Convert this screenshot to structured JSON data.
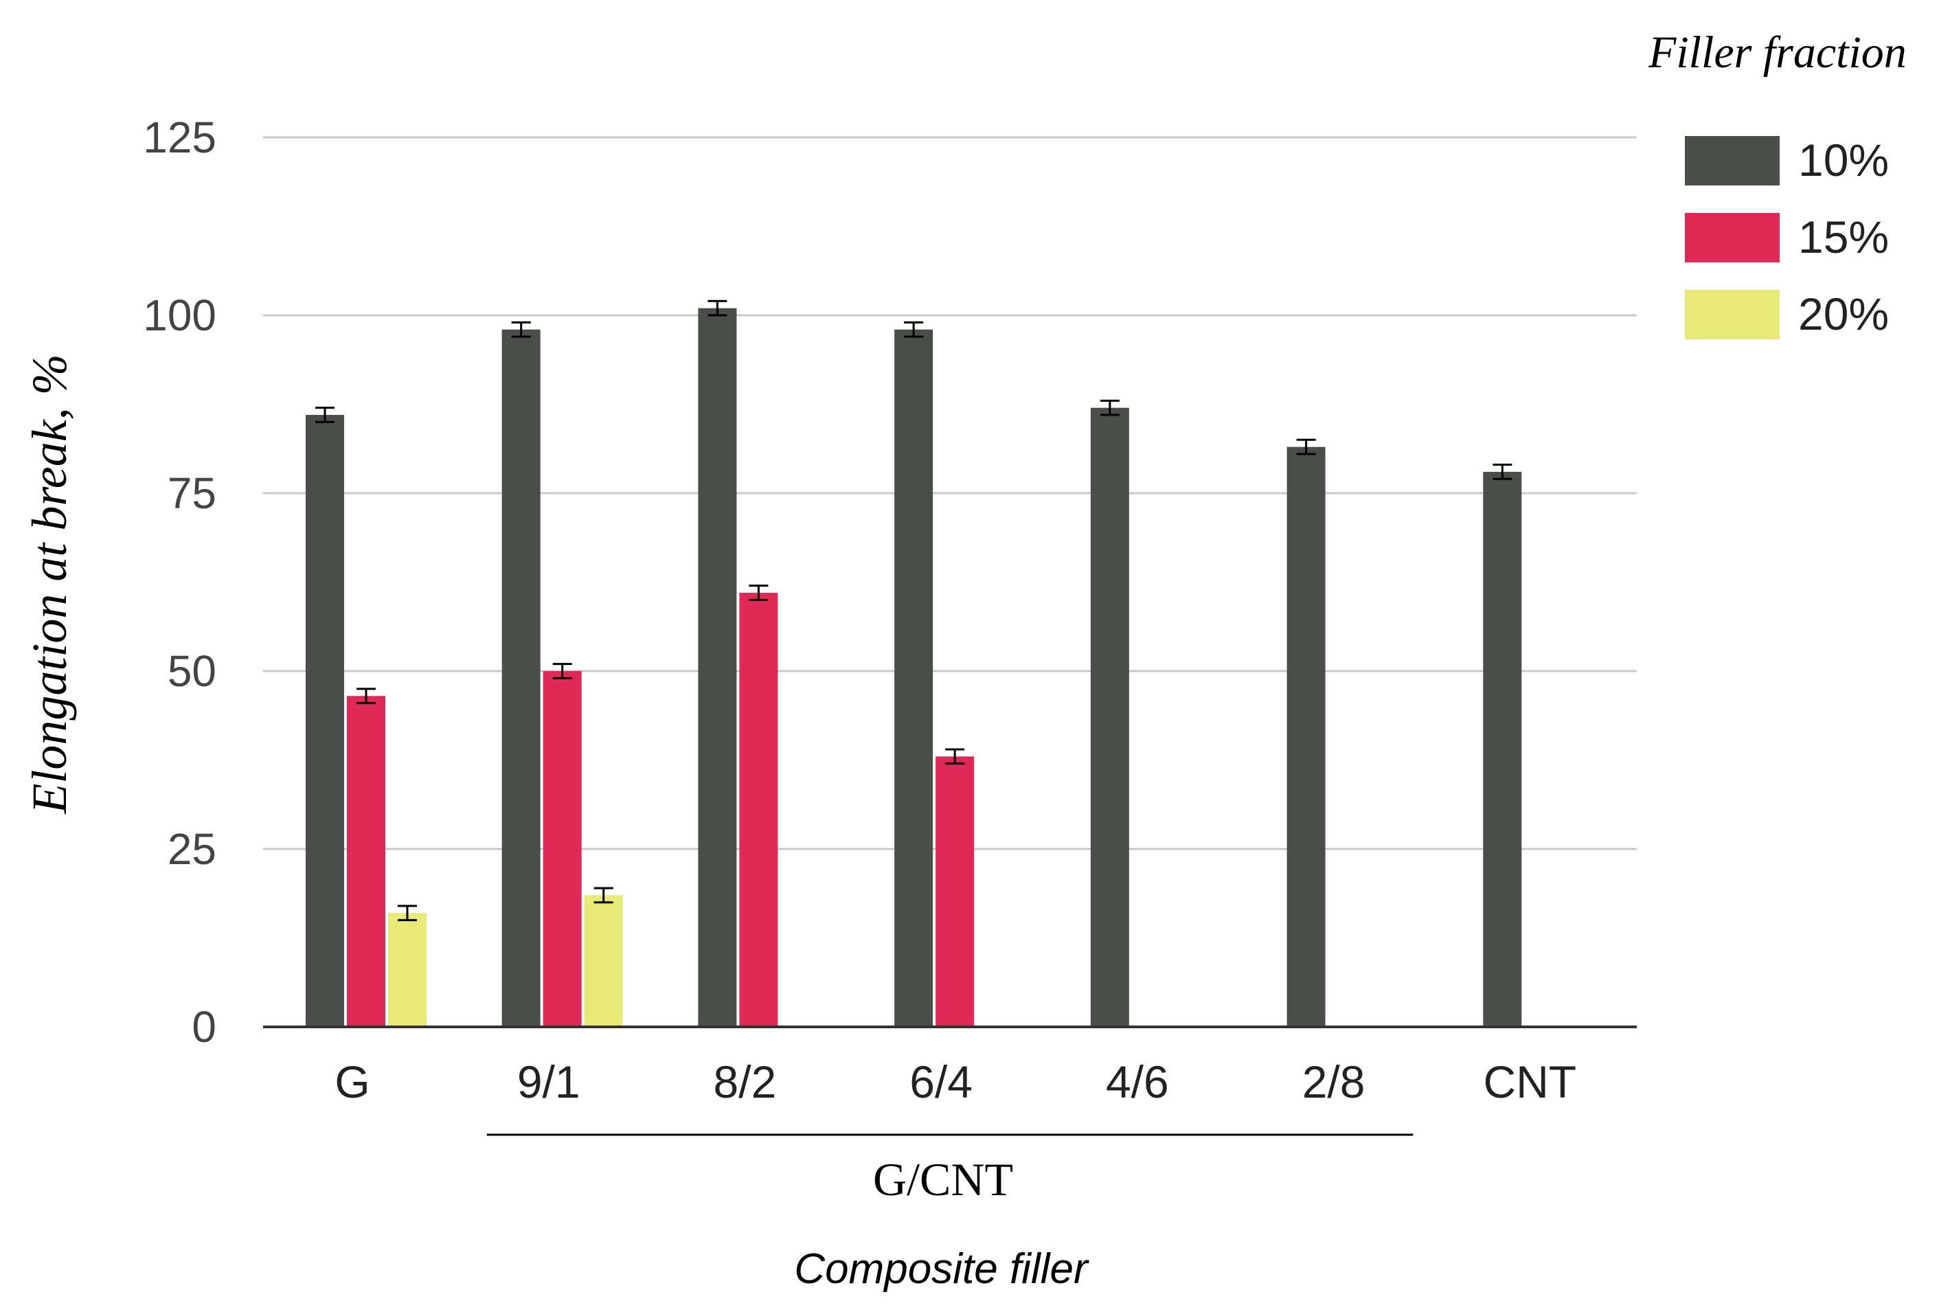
{
  "chart_data": {
    "type": "bar",
    "ylabel": "Elongation at break, %",
    "xlabel": "Composite filler",
    "group_label": "G/CNT",
    "legend_title": "Filler fraction",
    "legend_position": "top-right",
    "categories": [
      "G",
      "9/1",
      "8/2",
      "6/4",
      "4/6",
      "2/8",
      "CNT"
    ],
    "grouped_categories": [
      "9/1",
      "8/2",
      "6/4",
      "4/6",
      "2/8"
    ],
    "ylim": [
      0,
      125
    ],
    "yticks": [
      0,
      25,
      50,
      75,
      100,
      125
    ],
    "grid": true,
    "series": [
      {
        "name": "10%",
        "color": "#4a4d4a",
        "values": [
          86,
          98,
          101,
          98,
          87,
          81.5,
          78
        ],
        "errors": [
          1,
          1,
          1,
          1,
          1,
          1,
          1
        ]
      },
      {
        "name": "15%",
        "color": "#df2a57",
        "values": [
          46.5,
          50,
          61,
          38,
          null,
          null,
          null
        ],
        "errors": [
          1,
          1,
          1,
          1,
          null,
          null,
          null
        ]
      },
      {
        "name": "20%",
        "color": "#e8ea78",
        "values": [
          16,
          18.5,
          null,
          null,
          null,
          null,
          null
        ],
        "errors": [
          1,
          1,
          null,
          null,
          null,
          null,
          null
        ]
      }
    ]
  }
}
